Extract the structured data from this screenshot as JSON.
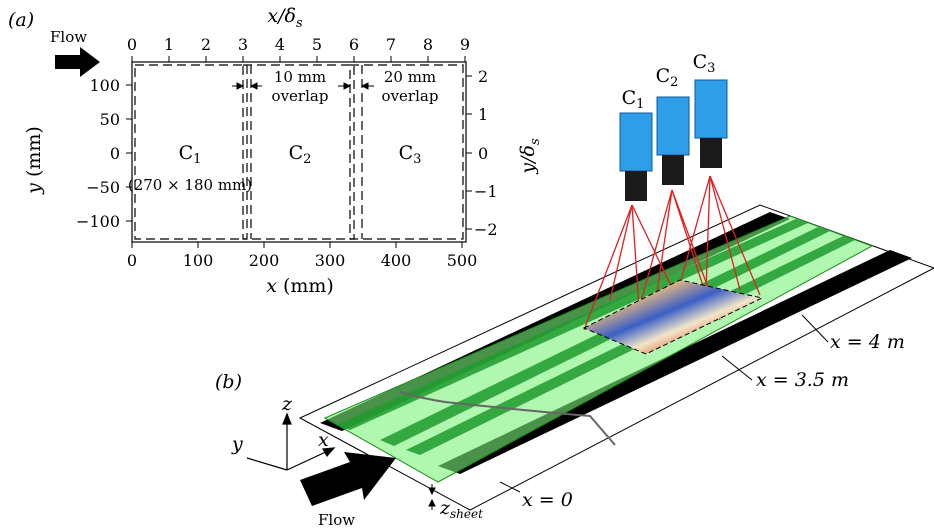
{
  "panel_a": {
    "label": "(a)",
    "flow": "Flow",
    "top_axis": {
      "label": "x/δ",
      "sub": "s",
      "ticks": [
        "0",
        "1",
        "2",
        "3",
        "4",
        "5",
        "6",
        "7",
        "8",
        "9"
      ]
    },
    "bottom_axis": {
      "label": "x",
      "unit": " (mm)",
      "ticks": [
        "0",
        "100",
        "200",
        "300",
        "400",
        "500"
      ]
    },
    "left_axis": {
      "label": "y",
      "unit": " (mm)",
      "ticks": [
        "100",
        "50",
        "0",
        "−50",
        "−100"
      ]
    },
    "right_axis": {
      "label": "y/δ",
      "sub": "s",
      "ticks": [
        "2",
        "1",
        "0",
        "−1",
        "−2"
      ]
    },
    "cams": [
      {
        "label": "C",
        "sub": "1"
      },
      {
        "label": "C",
        "sub": "2"
      },
      {
        "label": "C",
        "sub": "3"
      }
    ],
    "size_note": "(270 × 180 mm)",
    "overlap1": {
      "value": "10 mm",
      "word": "overlap"
    },
    "overlap2": {
      "value": "20 mm",
      "word": "overlap"
    }
  },
  "panel_b": {
    "label": "(b)",
    "flow": "Flow",
    "cams": [
      {
        "label": "C",
        "sub": "1"
      },
      {
        "label": "C",
        "sub": "2"
      },
      {
        "label": "C",
        "sub": "3"
      }
    ],
    "axes": {
      "x": "x",
      "y": "y",
      "z": "z"
    },
    "x4": "x = 4 m",
    "x35": "x = 3.5 m",
    "x0": "x = 0",
    "zsheet": "z",
    "zsheet_sub": "sheet"
  },
  "colors": {
    "camera_body": "#2f9ee8",
    "laser_sheet": "#7cf27c",
    "stripe_dark": "#000000",
    "stripe_green": "#1e9a2e",
    "ray": "#e02020"
  }
}
